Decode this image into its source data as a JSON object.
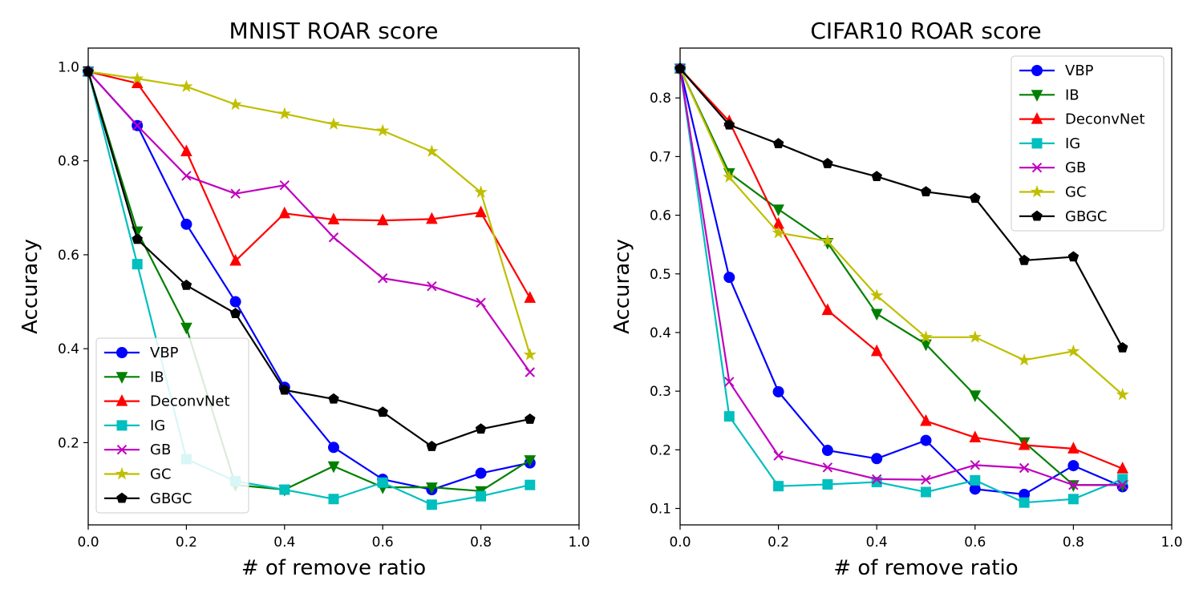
{
  "chart_data": [
    {
      "type": "line",
      "title": "MNIST ROAR score",
      "xlabel": "# of remove ratio",
      "ylabel": "Accuracy",
      "xlim": [
        0.0,
        1.0
      ],
      "ylim": [
        0.025,
        1.04
      ],
      "xticks": [
        "0.0",
        "0.2",
        "0.4",
        "0.6",
        "0.8",
        "1.0"
      ],
      "yticks": [
        "0.2",
        "0.4",
        "0.6",
        "0.8",
        "1.0"
      ],
      "legend_position": "lower-left",
      "grid": false,
      "x": [
        0.0,
        0.1,
        0.2,
        0.3,
        0.4,
        0.5,
        0.6,
        0.7,
        0.8,
        0.9
      ],
      "series": [
        {
          "name": "VBP",
          "color": "#0000ff",
          "marker": "circle",
          "values": [
            0.99,
            0.875,
            0.665,
            0.5,
            0.318,
            0.19,
            0.122,
            0.1,
            0.135,
            0.157
          ]
        },
        {
          "name": "IB",
          "color": "#008000",
          "marker": "triangle-down",
          "values": [
            0.99,
            0.65,
            0.445,
            0.11,
            0.1,
            0.15,
            0.105,
            0.105,
            0.097,
            0.163
          ]
        },
        {
          "name": "DeconvNet",
          "color": "#ff0000",
          "marker": "triangle-up",
          "values": [
            0.99,
            0.965,
            0.82,
            0.587,
            0.688,
            0.675,
            0.673,
            0.676,
            0.69,
            0.508
          ]
        },
        {
          "name": "IG",
          "color": "#00bfbf",
          "marker": "square",
          "values": [
            0.99,
            0.58,
            0.165,
            0.118,
            0.1,
            0.08,
            0.115,
            0.068,
            0.086,
            0.11
          ]
        },
        {
          "name": "GB",
          "color": "#bf00bf",
          "marker": "x",
          "values": [
            0.99,
            0.875,
            0.768,
            0.73,
            0.748,
            0.637,
            0.55,
            0.533,
            0.498,
            0.35
          ]
        },
        {
          "name": "GC",
          "color": "#bfbf00",
          "marker": "star",
          "values": [
            0.99,
            0.975,
            0.958,
            0.92,
            0.9,
            0.878,
            0.864,
            0.82,
            0.733,
            0.387
          ]
        },
        {
          "name": "GBGC",
          "color": "#000000",
          "marker": "pentagon",
          "values": [
            0.99,
            0.633,
            0.535,
            0.475,
            0.312,
            0.293,
            0.265,
            0.192,
            0.229,
            0.25
          ]
        }
      ]
    },
    {
      "type": "line",
      "title": "CIFAR10 ROAR score",
      "xlabel": "# of remove ratio",
      "ylabel": "Accuracy",
      "xlim": [
        0.0,
        1.0
      ],
      "ylim": [
        0.072,
        0.885
      ],
      "xticks": [
        "0.0",
        "0.2",
        "0.4",
        "0.6",
        "0.8",
        "1.0"
      ],
      "yticks": [
        "0.1",
        "0.2",
        "0.3",
        "0.4",
        "0.5",
        "0.6",
        "0.7",
        "0.8"
      ],
      "legend_position": "upper-right",
      "grid": false,
      "x": [
        0.0,
        0.1,
        0.2,
        0.3,
        0.4,
        0.5,
        0.6,
        0.7,
        0.8,
        0.9
      ],
      "series": [
        {
          "name": "VBP",
          "color": "#0000ff",
          "marker": "circle",
          "values": [
            0.85,
            0.494,
            0.299,
            0.199,
            0.185,
            0.216,
            0.133,
            0.124,
            0.173,
            0.137
          ]
        },
        {
          "name": "IB",
          "color": "#008000",
          "marker": "triangle-down",
          "values": [
            0.85,
            0.672,
            0.61,
            0.553,
            0.432,
            0.38,
            0.293,
            0.213,
            0.14,
            0.14
          ]
        },
        {
          "name": "DeconvNet",
          "color": "#ff0000",
          "marker": "triangle-up",
          "values": [
            0.85,
            0.76,
            0.585,
            0.438,
            0.368,
            0.249,
            0.221,
            0.208,
            0.202,
            0.168
          ]
        },
        {
          "name": "IG",
          "color": "#00bfbf",
          "marker": "square",
          "values": [
            0.85,
            0.257,
            0.138,
            0.141,
            0.145,
            0.128,
            0.148,
            0.11,
            0.116,
            0.15
          ]
        },
        {
          "name": "GB",
          "color": "#bf00bf",
          "marker": "x",
          "values": [
            0.85,
            0.316,
            0.19,
            0.17,
            0.15,
            0.149,
            0.174,
            0.169,
            0.14,
            0.14
          ]
        },
        {
          "name": "GC",
          "color": "#bfbf00",
          "marker": "star",
          "values": [
            0.85,
            0.665,
            0.57,
            0.556,
            0.463,
            0.392,
            0.392,
            0.353,
            0.368,
            0.294
          ]
        },
        {
          "name": "GBGC",
          "color": "#000000",
          "marker": "pentagon",
          "values": [
            0.85,
            0.754,
            0.722,
            0.688,
            0.666,
            0.64,
            0.629,
            0.523,
            0.529,
            0.374
          ]
        }
      ]
    }
  ]
}
